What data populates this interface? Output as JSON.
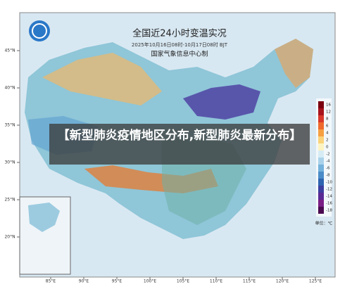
{
  "map": {
    "title": "全国近24小时变温实况",
    "subtitle": "2025年10月16日08时-10月17日08时 BJT",
    "source": "国家气象信息中心制",
    "lat_labels": [
      "45°N",
      "40°N",
      "35°N",
      "30°N",
      "25°N",
      "20°N"
    ],
    "lon_labels": [
      "85°E",
      "90°E",
      "95°E",
      "100°E",
      "105°E",
      "110°E",
      "115°E",
      "120°E",
      "125°E"
    ],
    "legend": [
      {
        "label": "16",
        "color": "#7a0010"
      },
      {
        "label": "12",
        "color": "#a8141c"
      },
      {
        "label": "8",
        "color": "#d8382a"
      },
      {
        "label": "6",
        "color": "#ee6a2e"
      },
      {
        "label": "4",
        "color": "#f6a042"
      },
      {
        "label": "2",
        "color": "#fbd37a"
      },
      {
        "label": "0",
        "color": "#fdf3c0"
      },
      {
        "label": "-2",
        "color": "#d6ecf4"
      },
      {
        "label": "-4",
        "color": "#a9d2ea"
      },
      {
        "label": "-6",
        "color": "#74b2dc"
      },
      {
        "label": "-8",
        "color": "#4a8cc8"
      },
      {
        "label": "-10",
        "color": "#2f64b0"
      },
      {
        "label": "-12",
        "color": "#3c3ea0"
      },
      {
        "label": "-14",
        "color": "#5a2a94"
      },
      {
        "label": "-16",
        "color": "#7a1e86"
      },
      {
        "label": "-18",
        "color": "#4a0a50"
      }
    ],
    "unit": "单位：℃"
  },
  "banner": "【新型肺炎疫情地区分布,新型肺炎最新分布】"
}
